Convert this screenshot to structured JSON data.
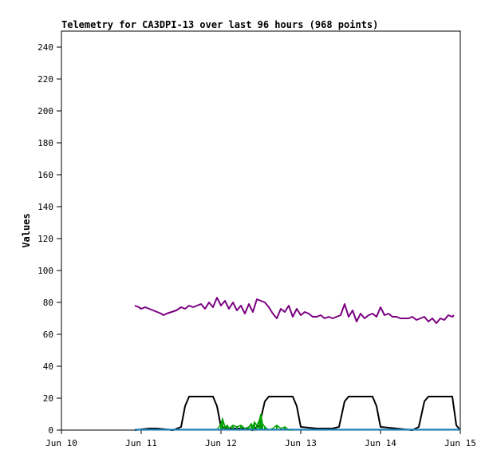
{
  "chart_data": {
    "type": "line",
    "title": "Telemetry for CA3DPI-13 over last 96 hours (968 points)",
    "xlabel": "",
    "ylabel": "Values",
    "x_tick_labels": [
      "Jun 10",
      "Jun 11",
      "Jun 12",
      "Jun 13",
      "Jun 14",
      "Jun 15"
    ],
    "xlim": [
      0,
      5
    ],
    "x_unit": "days from Jun 10",
    "ylim": [
      0,
      250
    ],
    "y_ticks": [
      0,
      20,
      40,
      60,
      80,
      100,
      120,
      140,
      160,
      180,
      200,
      220,
      240
    ],
    "grid": false,
    "legend": "none",
    "series": [
      {
        "color": "#7a0080",
        "style": "line",
        "x": [
          0.92,
          0.97,
          1.0,
          1.05,
          1.1,
          1.15,
          1.2,
          1.25,
          1.28,
          1.32,
          1.38,
          1.44,
          1.5,
          1.55,
          1.6,
          1.65,
          1.7,
          1.75,
          1.8,
          1.85,
          1.9,
          1.95,
          2.0,
          2.05,
          2.1,
          2.15,
          2.2,
          2.25,
          2.3,
          2.35,
          2.4,
          2.45,
          2.5,
          2.55,
          2.6,
          2.65,
          2.7,
          2.75,
          2.8,
          2.85,
          2.9,
          2.95,
          3.0,
          3.05,
          3.1,
          3.15,
          3.2,
          3.25,
          3.3,
          3.35,
          3.4,
          3.45,
          3.5,
          3.55,
          3.6,
          3.65,
          3.7,
          3.75,
          3.8,
          3.85,
          3.9,
          3.95,
          4.0,
          4.05,
          4.1,
          4.15,
          4.2,
          4.25,
          4.3,
          4.35,
          4.4,
          4.45,
          4.5,
          4.55,
          4.6,
          4.65,
          4.7,
          4.75,
          4.8,
          4.85,
          4.9,
          4.92
        ],
        "values": [
          78,
          77,
          76,
          77,
          76,
          75,
          74,
          73,
          72,
          73,
          74,
          75,
          77,
          76,
          78,
          77,
          78,
          79,
          76,
          80,
          77,
          83,
          78,
          81,
          76,
          80,
          75,
          78,
          73,
          79,
          74,
          82,
          81,
          80,
          77,
          73,
          70,
          76,
          74,
          78,
          71,
          76,
          72,
          74,
          73,
          71,
          71,
          72,
          70,
          71,
          70,
          71,
          72,
          79,
          71,
          75,
          68,
          73,
          70,
          72,
          73,
          71,
          77,
          72,
          73,
          71,
          71,
          70,
          70,
          70,
          71,
          69,
          70,
          71,
          68,
          70,
          67,
          70,
          69,
          72,
          71,
          72
        ]
      },
      {
        "color": "#000000",
        "style": "line",
        "x": [
          0.92,
          1.1,
          1.2,
          1.4,
          1.5,
          1.55,
          1.6,
          1.9,
          1.95,
          2.0,
          2.1,
          2.3,
          2.4,
          2.48,
          2.55,
          2.6,
          2.9,
          2.95,
          3.0,
          3.2,
          3.4,
          3.48,
          3.55,
          3.6,
          3.9,
          3.95,
          4.0,
          4.2,
          4.4,
          4.48,
          4.55,
          4.6,
          4.9,
          4.95,
          5.0
        ],
        "values": [
          0,
          1,
          1,
          0,
          2,
          15,
          21,
          21,
          15,
          2,
          1,
          1,
          0,
          3,
          18,
          21,
          21,
          15,
          2,
          1,
          1,
          2,
          18,
          21,
          21,
          15,
          2,
          1,
          0,
          2,
          18,
          21,
          21,
          3,
          0
        ]
      },
      {
        "color": "#00a000",
        "style": "spiky",
        "x": [
          1.95,
          2.0,
          2.02,
          2.05,
          2.08,
          2.1,
          2.15,
          2.2,
          2.25,
          2.3,
          2.35,
          2.38,
          2.4,
          2.42,
          2.45,
          2.48,
          2.5,
          2.52,
          2.55,
          2.6,
          2.65,
          2.7,
          2.75,
          2.8,
          2.85,
          2.9
        ],
        "values": [
          0,
          4,
          7,
          2,
          3,
          1,
          3,
          2,
          3,
          1,
          2,
          4,
          2,
          5,
          3,
          6,
          10,
          4,
          2,
          0,
          1,
          3,
          1,
          2,
          0,
          0
        ]
      },
      {
        "color": "#1a7fbf",
        "style": "line",
        "x": [
          0.92,
          5.0
        ],
        "values": [
          0.3,
          0.3
        ]
      }
    ]
  }
}
